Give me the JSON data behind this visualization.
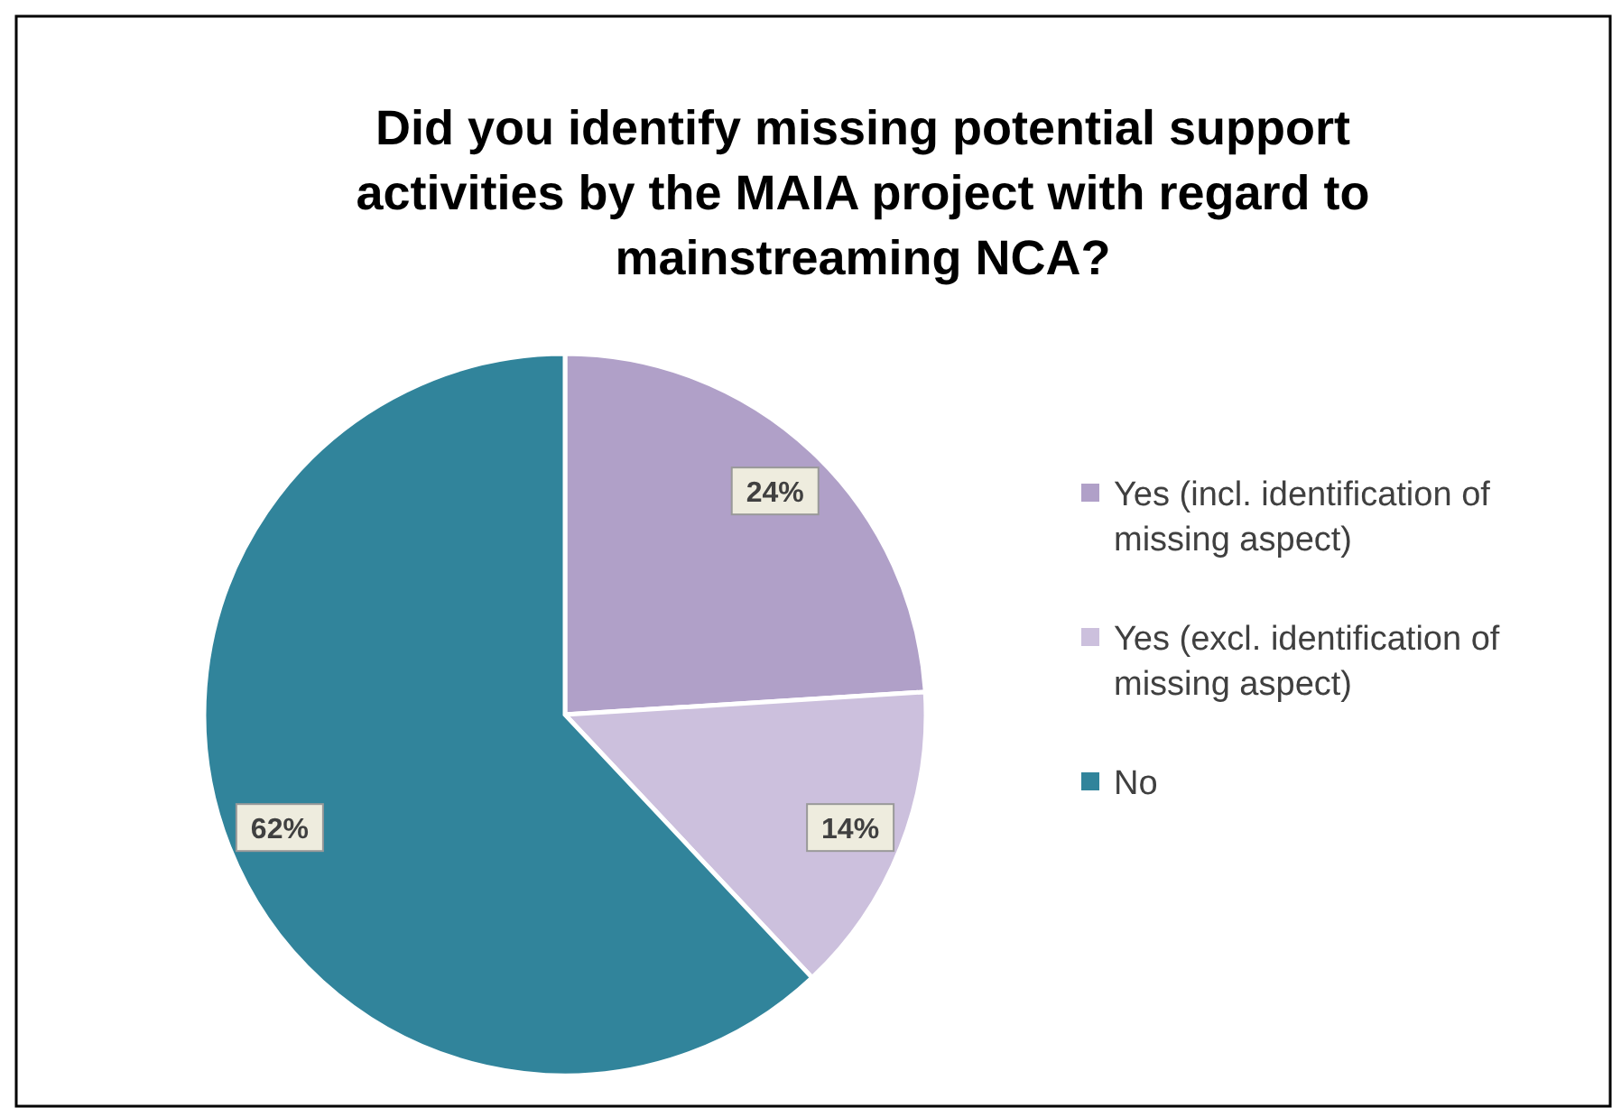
{
  "chart_data": {
    "type": "pie",
    "title": "Did you identify missing potential support activities by the MAIA project with regard to mainstreaming NCA?",
    "categories": [
      "Yes (incl. identification of missing aspect)",
      "Yes (excl. identification of missing aspect)",
      "No"
    ],
    "values": [
      24,
      14,
      62
    ],
    "colors": [
      "#b0a0c8",
      "#ccc0dd",
      "#31849b"
    ],
    "value_labels": [
      "24%",
      "14%",
      "62%"
    ],
    "legend": "right"
  }
}
